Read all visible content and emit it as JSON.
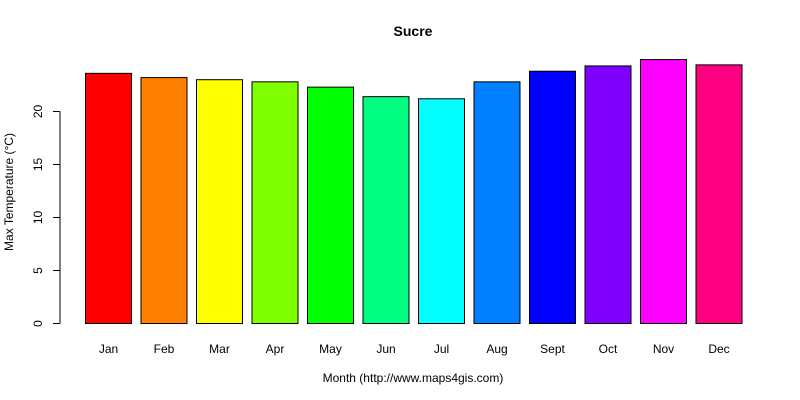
{
  "chart_data": {
    "type": "bar",
    "title": "Sucre",
    "xlabel": "Month (http://www.maps4gis.com)",
    "ylabel": "Max Temperature (°C)",
    "categories": [
      "Jan",
      "Feb",
      "Mar",
      "Apr",
      "May",
      "Jun",
      "Jul",
      "Aug",
      "Sept",
      "Oct",
      "Nov",
      "Dec"
    ],
    "values": [
      23.6,
      23.2,
      23.0,
      22.8,
      22.3,
      21.4,
      21.2,
      22.8,
      23.8,
      24.3,
      24.9,
      24.4
    ],
    "colors": [
      "#FF0000",
      "#FF8000",
      "#FFFF00",
      "#80FF00",
      "#00FF00",
      "#00FF80",
      "#00FFFF",
      "#0080FF",
      "#0000FF",
      "#8000FF",
      "#FF00FF",
      "#FF0080"
    ],
    "yticks": [
      0,
      5,
      10,
      15,
      20
    ],
    "ylim": [
      0,
      25
    ],
    "grid": false,
    "legend": "none"
  }
}
